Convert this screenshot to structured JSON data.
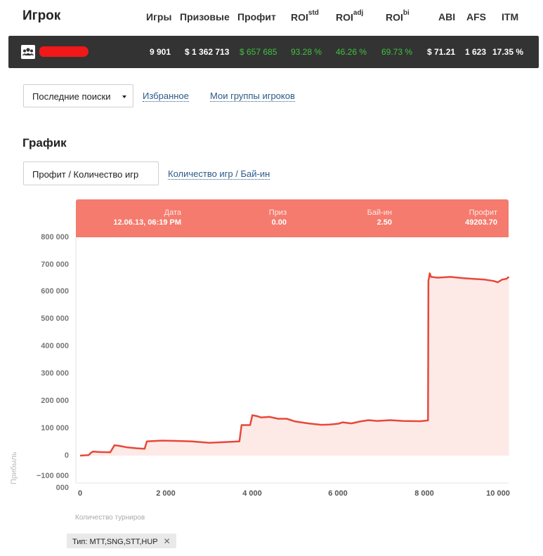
{
  "header": {
    "player_label": "Игрок",
    "columns": [
      {
        "key": "games",
        "label": "Игры",
        "sup": ""
      },
      {
        "key": "prizes",
        "label": "Призовые",
        "sup": ""
      },
      {
        "key": "profit",
        "label": "Профит",
        "sup": ""
      },
      {
        "key": "roi_std",
        "label": "ROI",
        "sup": "std"
      },
      {
        "key": "roi_adj",
        "label": "ROI",
        "sup": "adj"
      },
      {
        "key": "roi_bi",
        "label": "ROI",
        "sup": "bi"
      },
      {
        "key": "abi",
        "label": "ABI",
        "sup": ""
      },
      {
        "key": "afs",
        "label": "AFS",
        "sup": ""
      },
      {
        "key": "itm",
        "label": "ITM",
        "sup": ""
      }
    ]
  },
  "player_row": {
    "avatar_icon": "group-icon",
    "name_redacted": true,
    "games": "9 901",
    "prizes": "$ 1 362 713",
    "profit": "$ 657 685",
    "roi_std": "93.28 %",
    "roi_adj": "46.26 %",
    "roi_bi": "69.73 %",
    "abi": "$ 71.21",
    "afs": "1 623",
    "itm": "17.35 %"
  },
  "search": {
    "recent_label": "Последние поиски",
    "favorites_label": "Избранное",
    "groups_label": "Мои группы игроков"
  },
  "graph": {
    "section_title": "График",
    "tab_active": "Профит / Количество игр",
    "tab_other": "Количество игр / Бай-ин"
  },
  "tooltip": {
    "date_label": "Дата",
    "date_value": "12.06.13, 06:19 PM",
    "prize_label": "Приз",
    "prize_value": "0.00",
    "buyin_label": "Бай-ин",
    "buyin_value": "2.50",
    "profit_label": "Профит",
    "profit_value": "49203.70"
  },
  "filter": {
    "tag_label": "Тип: MTT,SNG,STT,HUP",
    "remove_icon": "close-icon"
  },
  "chart_data": {
    "type": "area",
    "xlabel": "Количество турниров",
    "ylabel": "Прибыль",
    "xlim": [
      0,
      10000
    ],
    "ylim": [
      -100000,
      800000
    ],
    "x_ticks": [
      "0",
      "2 000",
      "4 000",
      "6 000",
      "8 000",
      "10 000"
    ],
    "y_ticks": [
      "800 000",
      "700 000",
      "600 000",
      "500 000",
      "400 000",
      "300 000",
      "200 000",
      "100 000",
      "0",
      "−100 000"
    ],
    "y_bottom_label": "000",
    "colors": {
      "line": "#e8483a",
      "fill": "#fdeae7",
      "tooltip_bg": "#f47b6e"
    },
    "series": [
      {
        "x": [
          0,
          200,
          250,
          300,
          450,
          700,
          800,
          900,
          1100,
          1300,
          1500,
          1550,
          1650,
          1900,
          2200,
          2600,
          3000,
          3400,
          3700,
          3750,
          3950,
          4000,
          4100,
          4200,
          4400,
          4600,
          4800,
          5000,
          5300,
          5600,
          5800,
          6000,
          6100,
          6300,
          6500,
          6700,
          6900,
          7200,
          7500,
          7900,
          8080,
          8090,
          8120,
          8150,
          8300,
          8600,
          8900,
          9200,
          9400,
          9600,
          9700,
          9800,
          9900,
          9960
        ],
        "y": [
          0,
          2000,
          10000,
          15000,
          13000,
          12000,
          38000,
          36000,
          30000,
          27000,
          25000,
          52000,
          53000,
          55000,
          54000,
          52000,
          47000,
          50000,
          52000,
          112000,
          112000,
          148000,
          145000,
          140000,
          142000,
          135000,
          135000,
          125000,
          118000,
          113000,
          114000,
          117000,
          122000,
          118000,
          125000,
          130000,
          127000,
          130000,
          127000,
          126000,
          129000,
          640000,
          668000,
          655000,
          652000,
          655000,
          650000,
          647000,
          645000,
          640000,
          635000,
          645000,
          648000,
          655000
        ]
      }
    ]
  }
}
